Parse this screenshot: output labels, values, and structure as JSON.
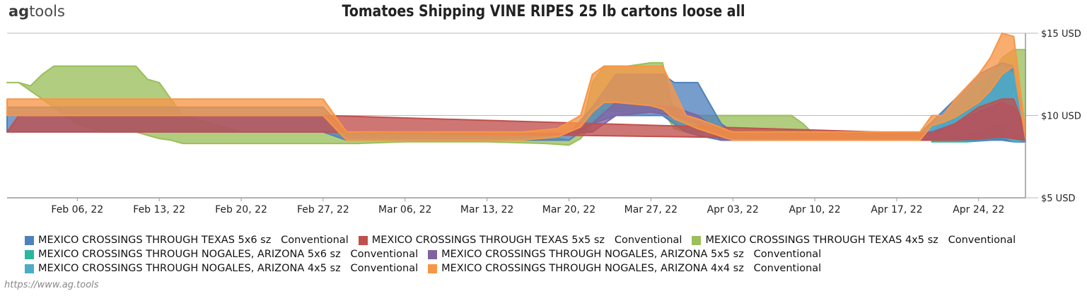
{
  "header": {
    "logo_prefix": "ag",
    "logo_suffix": "tools",
    "title": "Tomatoes Shipping VINE RIPES 25 lb cartons loose all"
  },
  "footer": {
    "url": "https://www.ag.tools"
  },
  "chart_data": {
    "type": "area",
    "title": "Tomatoes Shipping VINE RIPES 25 lb cartons loose all",
    "x_ticks": [
      "Feb 06, 22",
      "Feb 13, 22",
      "Feb 20, 22",
      "Feb 27, 22",
      "Mar 06, 22",
      "Mar 13, 22",
      "Mar 20, 22",
      "Mar 27, 22",
      "Apr 03, 22",
      "Apr 10, 22",
      "Apr 17, 22",
      "Apr 24, 22"
    ],
    "y_ticks": [
      "$15 USD",
      "$10 USD",
      "$5 USD"
    ],
    "y_tick_values": [
      15,
      10,
      5
    ],
    "ylim": [
      5,
      15
    ],
    "xlim": [
      "2022-01-31",
      "2022-04-28"
    ],
    "legend_position": "bottom",
    "series": [
      {
        "name": "MEXICO CROSSINGS THROUGH TEXAS 4x5 sz   Conventional",
        "color": "#9bbf5b",
        "x": [
          "2022-01-31",
          "2022-02-01",
          "2022-02-02",
          "2022-02-03",
          "2022-02-04",
          "2022-02-06",
          "2022-02-08",
          "2022-02-09",
          "2022-02-10",
          "2022-02-11",
          "2022-02-12",
          "2022-02-13",
          "2022-02-14",
          "2022-02-15",
          "2022-02-20",
          "2022-02-27",
          "2022-03-01",
          "2022-03-02",
          "2022-03-06",
          "2022-03-13",
          "2022-03-18",
          "2022-03-20",
          "2022-03-21",
          "2022-03-22",
          "2022-03-23",
          "2022-03-25",
          "2022-03-27",
          "2022-03-28",
          "2022-03-29",
          "2022-03-30",
          "2022-04-01",
          "2022-04-03",
          "2022-04-06",
          "2022-04-08",
          "2022-04-09",
          "2022-04-10",
          "2022-04-13",
          "2022-04-17",
          "2022-04-20",
          "2022-04-24",
          "2022-04-26",
          "2022-04-27",
          "2022-04-28"
        ],
        "low": [
          12.0,
          12.0,
          11.5,
          11.0,
          10.5,
          9.5,
          9.0,
          9.0,
          9.0,
          9.0,
          8.8,
          8.6,
          8.5,
          8.3,
          8.3,
          8.3,
          8.3,
          8.3,
          8.4,
          8.4,
          8.3,
          8.2,
          8.6,
          9.5,
          10.3,
          10.2,
          10.2,
          10.3,
          9.2,
          9.0,
          9.0,
          9.0,
          9.0,
          9.0,
          8.8,
          8.5,
          8.5,
          8.5,
          8.5,
          8.5,
          8.7,
          11.8,
          8.8
        ],
        "high": [
          12.0,
          12.0,
          11.8,
          12.5,
          13.0,
          13.0,
          13.0,
          13.0,
          13.0,
          13.0,
          12.2,
          12.0,
          11.0,
          10.0,
          9.0,
          9.0,
          8.8,
          8.8,
          8.8,
          8.8,
          8.8,
          8.5,
          9.0,
          12.0,
          13.0,
          13.0,
          13.2,
          13.2,
          10.0,
          10.0,
          10.0,
          10.0,
          10.0,
          10.0,
          9.5,
          8.8,
          8.8,
          8.8,
          9.0,
          11.0,
          13.5,
          14.0,
          14.0
        ]
      },
      {
        "name": "MEXICO CROSSINGS THROUGH NOGALES, ARIZONA 5x6 sz   Conventional",
        "color": "#2ab79e",
        "x": [
          "2022-04-20",
          "2022-04-23",
          "2022-04-25",
          "2022-04-26",
          "2022-04-27",
          "2022-04-28"
        ],
        "low": [
          8.4,
          8.4,
          8.5,
          8.6,
          8.4,
          8.4
        ],
        "high": [
          8.6,
          8.8,
          9.2,
          9.6,
          9.0,
          8.6
        ]
      },
      {
        "name": "MEXICO CROSSINGS THROUGH TEXAS 5x6 sz   Conventional",
        "color": "#4f81bd",
        "x": [
          "2022-01-31",
          "2022-02-27",
          "2022-03-01",
          "2022-03-20",
          "2022-03-22",
          "2022-03-24",
          "2022-03-28",
          "2022-03-29",
          "2022-03-30",
          "2022-03-31",
          "2022-04-02",
          "2022-04-03",
          "2022-04-05",
          "2022-04-17",
          "2022-04-19",
          "2022-04-22",
          "2022-04-24",
          "2022-04-26",
          "2022-04-27",
          "2022-04-28"
        ],
        "low": [
          9.0,
          9.0,
          8.5,
          8.5,
          9.5,
          10.0,
          10.0,
          9.5,
          9.0,
          8.8,
          8.5,
          8.5,
          8.5,
          8.5,
          8.5,
          8.5,
          8.5,
          8.5,
          8.4,
          8.4
        ],
        "high": [
          10.5,
          10.5,
          8.9,
          8.9,
          10.5,
          12.5,
          12.5,
          12.0,
          12.0,
          12.0,
          9.5,
          9.0,
          9.0,
          8.9,
          8.9,
          11.0,
          12.5,
          13.2,
          13.0,
          9.0
        ]
      },
      {
        "name": "MEXICO CROSSINGS THROUGH NOGALES, ARIZONA 4x5 sz   Conventional",
        "color": "#4bacc6",
        "x": [
          "2022-04-19",
          "2022-04-22",
          "2022-04-24",
          "2022-04-26",
          "2022-04-27",
          "2022-04-28"
        ],
        "low": [
          8.5,
          8.5,
          8.6,
          8.8,
          8.4,
          8.5
        ],
        "high": [
          8.9,
          10.5,
          12.0,
          13.0,
          12.5,
          9.0
        ]
      },
      {
        "name": "MEXICO CROSSINGS THROUGH NOGALES, ARIZONA 5x5 sz   Conventional",
        "color": "#8064a2",
        "x": [
          "2022-03-20",
          "2022-03-22",
          "2022-03-24",
          "2022-03-27",
          "2022-03-29",
          "2022-03-31",
          "2022-04-02",
          "2022-04-04",
          "2022-04-17",
          "2022-04-20",
          "2022-04-22",
          "2022-04-24",
          "2022-04-26",
          "2022-04-27",
          "2022-04-28"
        ],
        "low": [
          8.9,
          9.0,
          10.0,
          10.2,
          10.0,
          9.5,
          8.5,
          8.5,
          8.5,
          8.5,
          8.5,
          8.6,
          8.7,
          8.6,
          8.5
        ],
        "high": [
          9.0,
          9.5,
          10.8,
          10.6,
          10.5,
          10.0,
          9.0,
          8.9,
          8.9,
          9.0,
          9.5,
          10.2,
          10.8,
          10.5,
          9.0
        ]
      },
      {
        "name": "MEXICO CROSSINGS THROUGH TEXAS 5x5 sz   Conventional",
        "color": "#c0504d",
        "x": [
          "2022-01-31",
          "2022-02-01",
          "2022-02-27",
          "2022-04-20",
          "2022-04-22",
          "2022-04-24",
          "2022-04-26",
          "2022-04-27",
          "2022-04-28"
        ],
        "low": [
          9.0,
          9.0,
          9.0,
          8.5,
          8.5,
          8.6,
          8.7,
          8.6,
          8.5
        ],
        "high": [
          9.0,
          10.0,
          10.0,
          8.9,
          9.5,
          10.5,
          11.0,
          11.0,
          9.0
        ]
      },
      {
        "name": "MEXICO CROSSINGS THROUGH NOGALES, ARIZONA 4x4 sz   Conventional",
        "color": "#f79646",
        "x": [
          "2022-01-31",
          "2022-02-27",
          "2022-03-01",
          "2022-03-02",
          "2022-03-06",
          "2022-03-13",
          "2022-03-16",
          "2022-03-19",
          "2022-03-21",
          "2022-03-22",
          "2022-03-23",
          "2022-03-24",
          "2022-03-27",
          "2022-03-28",
          "2022-03-29",
          "2022-03-30",
          "2022-03-31",
          "2022-04-03",
          "2022-04-06",
          "2022-04-10",
          "2022-04-17",
          "2022-04-19",
          "2022-04-20",
          "2022-04-21",
          "2022-04-22",
          "2022-04-24",
          "2022-04-25",
          "2022-04-26",
          "2022-04-27",
          "2022-04-28"
        ],
        "low": [
          10.0,
          10.0,
          8.5,
          8.5,
          8.5,
          8.5,
          8.5,
          8.7,
          9.3,
          10.2,
          10.8,
          10.8,
          10.6,
          10.4,
          9.8,
          9.5,
          9.2,
          8.5,
          8.5,
          8.5,
          8.5,
          8.5,
          9.4,
          9.6,
          9.9,
          10.8,
          11.5,
          12.5,
          13.0,
          8.6
        ],
        "high": [
          11.0,
          11.0,
          9.0,
          9.0,
          9.0,
          9.0,
          9.0,
          9.2,
          10.0,
          12.5,
          13.0,
          13.0,
          13.0,
          13.0,
          11.5,
          10.0,
          9.8,
          9.0,
          9.0,
          9.0,
          9.0,
          9.0,
          10.0,
          10.0,
          11.0,
          12.5,
          13.5,
          15.0,
          14.8,
          9.0
        ]
      }
    ]
  }
}
